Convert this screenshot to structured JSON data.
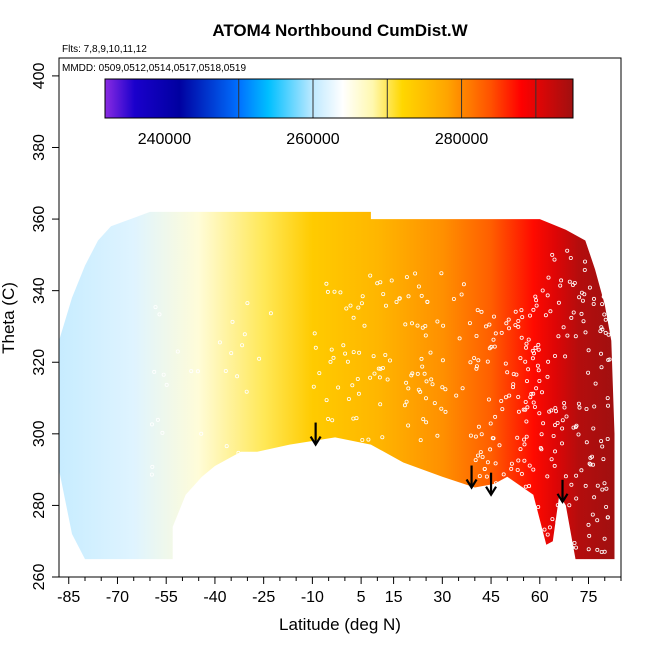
{
  "chart_data": {
    "type": "heatmap",
    "title": "ATOM4 Northbound CumDist.W",
    "subtitle_flights": "Flts: 7,8,9,10,11,12",
    "subtitle_dates": "MMDD: 0509,0512,0514,0517,0518,0519",
    "xlabel": "Latitude (deg N)",
    "ylabel": "Theta (C)",
    "xlim": [
      -88,
      85
    ],
    "ylim": [
      260,
      405
    ],
    "x_ticks": [
      -85,
      -70,
      -55,
      -40,
      -25,
      -10,
      5,
      15,
      30,
      45,
      60,
      75
    ],
    "y_ticks": [
      260,
      280,
      300,
      320,
      340,
      360,
      380,
      400
    ],
    "colorbar": {
      "range": [
        232000,
        295000
      ],
      "ticks": [
        240000,
        260000,
        280000
      ],
      "tick_labels": [
        "240000",
        "260000",
        "280000"
      ],
      "dividers": [
        250000,
        260000,
        270000,
        280000,
        290000
      ],
      "color_stops": [
        {
          "value": 232000,
          "color": "#8a2be2"
        },
        {
          "value": 236000,
          "color": "#1a00cc"
        },
        {
          "value": 242000,
          "color": "#0000a0"
        },
        {
          "value": 250000,
          "color": "#0070ff"
        },
        {
          "value": 254000,
          "color": "#00bfff"
        },
        {
          "value": 260000,
          "color": "#bfe9ff"
        },
        {
          "value": 264000,
          "color": "#ffffff"
        },
        {
          "value": 268000,
          "color": "#fff8b0"
        },
        {
          "value": 272000,
          "color": "#ffd700"
        },
        {
          "value": 278000,
          "color": "#ffa500"
        },
        {
          "value": 284000,
          "color": "#ff5000"
        },
        {
          "value": 288000,
          "color": "#ff0000"
        },
        {
          "value": 295000,
          "color": "#a01010"
        }
      ]
    },
    "field_upper_boundary": [
      {
        "lat": -88,
        "theta": 326
      },
      {
        "lat": -84,
        "theta": 338
      },
      {
        "lat": -80,
        "theta": 347
      },
      {
        "lat": -76,
        "theta": 354
      },
      {
        "lat": -72,
        "theta": 358
      },
      {
        "lat": -66,
        "theta": 360
      },
      {
        "lat": -60,
        "theta": 362
      },
      {
        "lat": 8,
        "theta": 362
      },
      {
        "lat": 8,
        "theta": 360
      },
      {
        "lat": 60,
        "theta": 360
      },
      {
        "lat": 68,
        "theta": 357
      },
      {
        "lat": 74,
        "theta": 354
      },
      {
        "lat": 77,
        "theta": 346
      },
      {
        "lat": 80,
        "theta": 336
      },
      {
        "lat": 82,
        "theta": 326
      },
      {
        "lat": 83,
        "theta": 300
      }
    ],
    "field_lower_boundary": [
      {
        "lat": 83,
        "theta": 265
      },
      {
        "lat": 71,
        "theta": 265
      },
      {
        "lat": 68,
        "theta": 280
      },
      {
        "lat": 66,
        "theta": 283
      },
      {
        "lat": 64,
        "theta": 270
      },
      {
        "lat": 62,
        "theta": 269
      },
      {
        "lat": 58,
        "theta": 283
      },
      {
        "lat": 50,
        "theta": 288
      },
      {
        "lat": 46,
        "theta": 286
      },
      {
        "lat": 40,
        "theta": 285
      },
      {
        "lat": 30,
        "theta": 288
      },
      {
        "lat": 18,
        "theta": 292
      },
      {
        "lat": 8,
        "theta": 297
      },
      {
        "lat": -3,
        "theta": 299
      },
      {
        "lat": -10,
        "theta": 298
      },
      {
        "lat": -17,
        "theta": 297
      },
      {
        "lat": -27,
        "theta": 295
      },
      {
        "lat": -32,
        "theta": 295
      },
      {
        "lat": -40,
        "theta": 291
      },
      {
        "lat": -44,
        "theta": 288
      },
      {
        "lat": -49,
        "theta": 283
      },
      {
        "lat": -53,
        "theta": 274
      },
      {
        "lat": -53,
        "theta": 265
      },
      {
        "lat": -80,
        "theta": 265
      },
      {
        "lat": -84,
        "theta": 272
      },
      {
        "lat": -88,
        "theta": 290
      }
    ],
    "field_color_by_latitude": [
      {
        "lat": -88,
        "value": 260500
      },
      {
        "lat": -65,
        "value": 262000
      },
      {
        "lat": -45,
        "value": 266000
      },
      {
        "lat": -25,
        "value": 270000
      },
      {
        "lat": -10,
        "value": 273500
      },
      {
        "lat": 10,
        "value": 276000
      },
      {
        "lat": 30,
        "value": 279500
      },
      {
        "lat": 45,
        "value": 283000
      },
      {
        "lat": 58,
        "value": 287500
      },
      {
        "lat": 65,
        "value": 290500
      },
      {
        "lat": 72,
        "value": 293500
      },
      {
        "lat": 83,
        "value": 295000
      }
    ],
    "arrows": [
      {
        "lat": -9,
        "theta": 297
      },
      {
        "lat": 39,
        "theta": 285
      },
      {
        "lat": 45,
        "theta": 283
      },
      {
        "lat": 67,
        "theta": 281
      }
    ],
    "sample_clusters": [
      {
        "lat_min": -10,
        "lat_max": 40,
        "theta_min": 298,
        "theta_max": 345,
        "count": 110
      },
      {
        "lat_min": 40,
        "lat_max": 60,
        "theta_min": 286,
        "theta_max": 335,
        "count": 90
      },
      {
        "lat_min": 55,
        "lat_max": 82,
        "theta_min": 266,
        "theta_max": 352,
        "count": 160
      },
      {
        "lat_min": -60,
        "lat_max": -10,
        "theta_min": 285,
        "theta_max": 340,
        "count": 35
      }
    ]
  }
}
